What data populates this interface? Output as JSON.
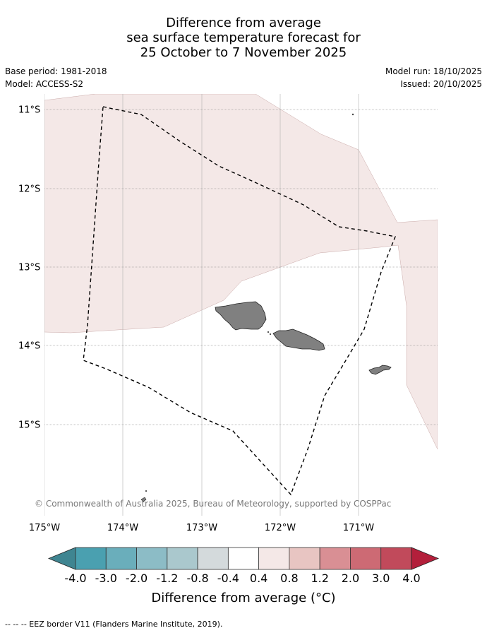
{
  "title": {
    "line1": "Difference from average",
    "line2": "sea surface temperature forecast for",
    "line3": "25 October to 7 November 2025"
  },
  "meta": {
    "base_period": "Base period: 1981-2018",
    "model": "Model: ACCESS-S2",
    "model_run": "Model run: 18/10/2025",
    "issued": "Issued: 20/10/2025"
  },
  "map": {
    "longitude_labels": [
      "175°W",
      "174°W",
      "173°W",
      "172°W",
      "171°W"
    ],
    "latitude_labels": [
      "11°S",
      "12°S",
      "13°S",
      "14°S",
      "15°S"
    ],
    "colors": {
      "warm_anomaly_fill": "#f4e8e7",
      "land": "#808080",
      "eez_border": "#000000",
      "gridlines": "#999999"
    },
    "copyright": "© Commonwealth of Australia 2025, Bureau of Meteorology, supported by COSPPac"
  },
  "colorbar": {
    "labels": [
      "-4.0",
      "-3.0",
      "-2.0",
      "-1.2",
      "-0.8",
      "-0.4",
      "0.4",
      "0.8",
      "1.2",
      "2.0",
      "3.0",
      "4.0"
    ],
    "colors": [
      "#3f8591",
      "#4aa0b0",
      "#6aaebb",
      "#8cbcc6",
      "#aac8cd",
      "#d4dadc",
      "#ffffff",
      "#f4e8e7",
      "#e8c5c2",
      "#d98f94",
      "#cd6a74",
      "#c14a5b",
      "#b31f3b"
    ],
    "title": "Difference from average (°C)"
  },
  "footer": {
    "legend_text": "--  --  -- EEZ border V11 (Flanders Marine Institute, 2019)."
  }
}
